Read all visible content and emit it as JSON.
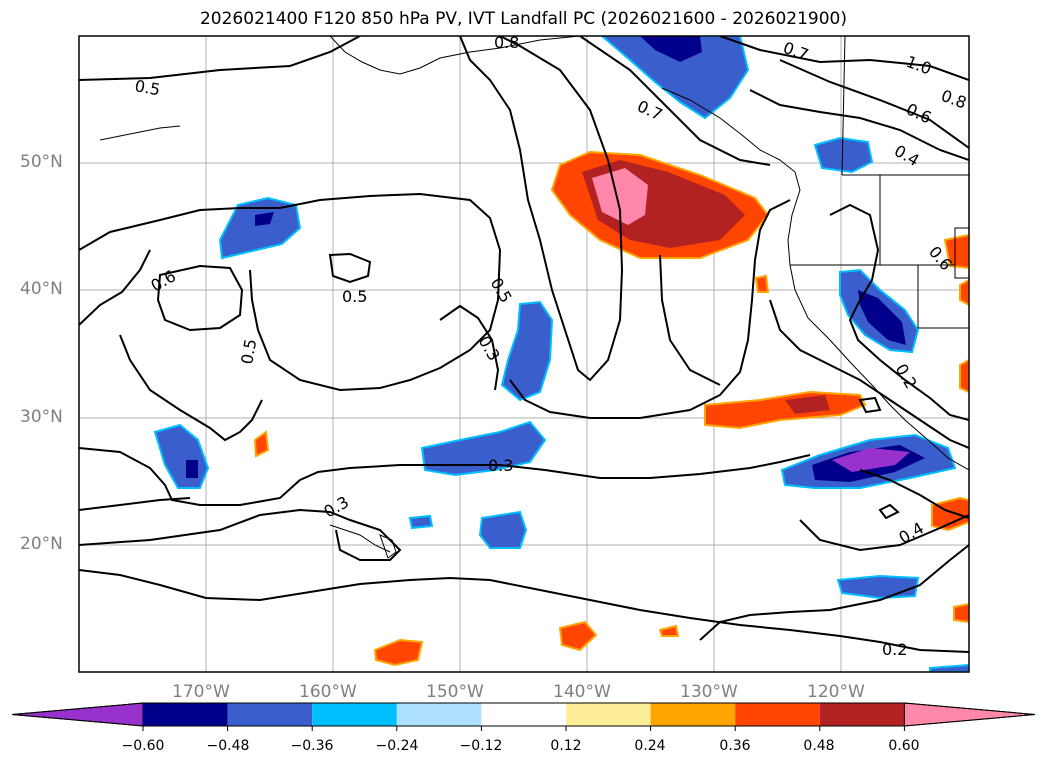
{
  "title": "2026021400 F120 850 hPa PV, IVT Landfall PC (2026021600 - 2026021900)",
  "map": {
    "projection": "PlateCarree",
    "lon_range": [
      -180,
      -110
    ],
    "lat_range": [
      10,
      60
    ],
    "lat_ticks": [
      "50°N",
      "40°N",
      "30°N",
      "20°N"
    ],
    "lon_ticks": [
      "170°W",
      "160°W",
      "150°W",
      "140°W",
      "130°W",
      "120°W"
    ],
    "contour_labels": [
      "0.8",
      "0.7",
      "1.0",
      "0.8",
      "0.5",
      "0.7",
      "0.6",
      "0.4",
      "0.6",
      "0.5",
      "0.5",
      "0.3",
      "0.5",
      "0.2",
      "0.3",
      "0.3",
      "0.4",
      "0.2",
      "0.6"
    ]
  },
  "colorbar": {
    "ticks": [
      "−0.60",
      "−0.48",
      "−0.36",
      "−0.24",
      "−0.12",
      "0.12",
      "0.24",
      "0.36",
      "0.48",
      "0.60"
    ],
    "colors": [
      "#9932CC",
      "#00008B",
      "#3A5FCD",
      "#00BFFF",
      "#ADE0FF",
      "#FFFFFF",
      "#FFEE99",
      "#FFA500",
      "#FF4500",
      "#B22222",
      "#FF88AA"
    ]
  }
}
